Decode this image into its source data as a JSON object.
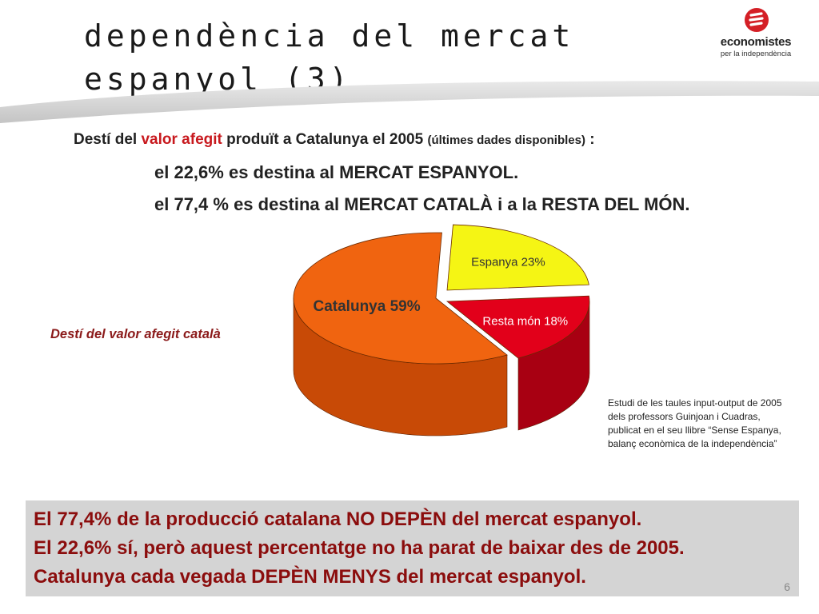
{
  "slide": {
    "title_line1": "dependència del mercat",
    "title_line2": "espanyol (3)",
    "page_number": "6"
  },
  "logo": {
    "name": "economistes",
    "tagline": "per la independència",
    "color": "#d41f26"
  },
  "intro": {
    "prefix": "Destí del ",
    "highlight": "valor afegit",
    "middle": " produït a Catalunya el 2005 ",
    "note": "(últimes dades disponibles)",
    "suffix": " :"
  },
  "stats": [
    "el 22,6%  es destina al MERCAT ESPANYOL.",
    "el 77,4 % es destina al MERCAT CATALÀ i a la RESTA DEL MÓN."
  ],
  "chart_caption": "Destí del valor afegit català",
  "chart_data": {
    "type": "pie",
    "categories": [
      "Catalunya",
      "Espanya",
      "Resta món"
    ],
    "values": [
      59,
      23,
      18
    ],
    "labels": [
      "Catalunya 59%",
      "Espanya 23%",
      "Resta món 18%"
    ],
    "colors": [
      "#f06410",
      "#f5f514",
      "#e2001a"
    ],
    "side_colors": [
      "#c84a06",
      "#c8c810",
      "#a80012"
    ],
    "title": "",
    "legend": "none"
  },
  "source_note": [
    "Estudi de les taules input-output de 2005",
    "dels professors Guinjoan i Cuadras,",
    "publicat en el seu llibre “Sense Espanya,",
    "balanç econòmica de la independència”"
  ],
  "conclusion": [
    "El 77,4% de la producció catalana NO DEPÈN del mercat espanyol.",
    "El 22,6% sí, però aquest percentatge no ha parat de baixar des de 2005.",
    "Catalunya cada vegada DEPÈN MENYS del mercat espanyol."
  ]
}
